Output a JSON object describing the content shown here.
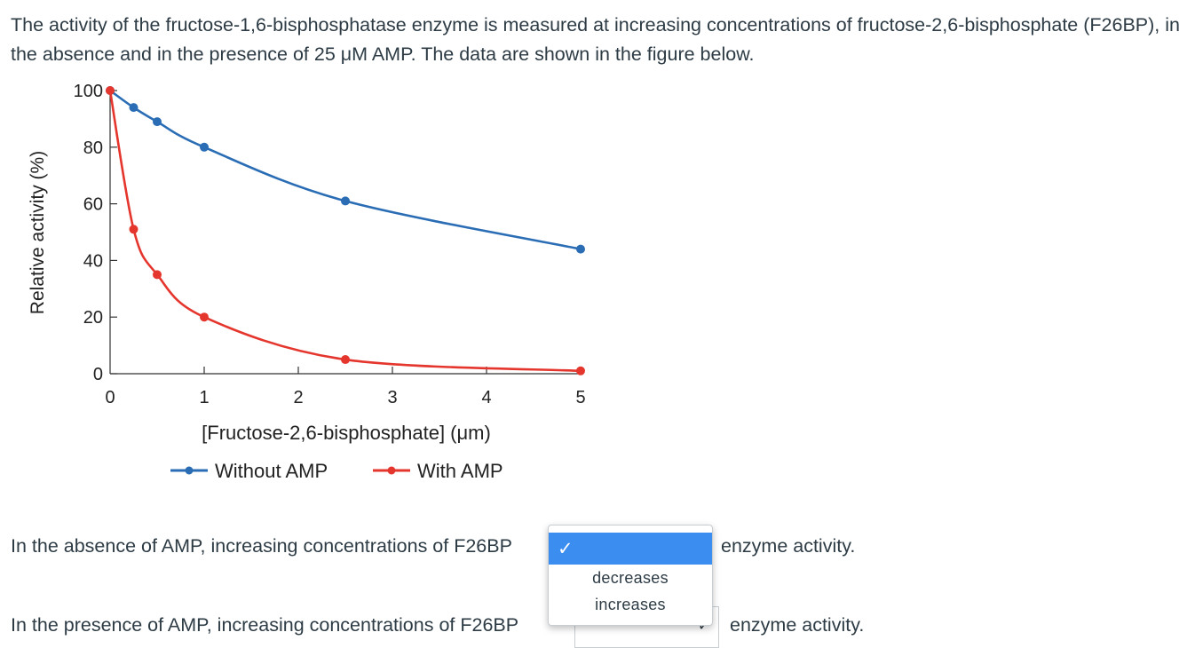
{
  "intro": "The activity of the fructose-1,6-bisphosphatase enzyme is measured at increasing concentrations of fructose-2,6-bisphosphate (F26BP), in the absence and in the presence of 25 μM AMP. The data are shown in the figure below.",
  "colors": {
    "series_without_amp": "#2a6db5",
    "series_with_amp": "#e5362e",
    "dropdown_highlight": "#3b8df0",
    "text": "#2d3b45"
  },
  "chart_data": {
    "type": "line",
    "xlabel": "[Fructose-2,6-bisphosphate] (μm)",
    "ylabel": "Relative activity (%)",
    "xlim": [
      0,
      5
    ],
    "ylim": [
      0,
      100
    ],
    "x_ticks": [
      "0",
      "1",
      "2",
      "3",
      "4",
      "5"
    ],
    "y_ticks": [
      "0",
      "20",
      "40",
      "60",
      "80",
      "100"
    ],
    "grid": false,
    "legend_position": "bottom",
    "series": [
      {
        "name": "Without AMP",
        "color": "#2a6db5",
        "x": [
          0,
          0.25,
          0.5,
          1,
          2.5,
          5
        ],
        "y": [
          100,
          94,
          89,
          80,
          61,
          44
        ]
      },
      {
        "name": "With AMP",
        "color": "#e5362e",
        "x": [
          0,
          0.25,
          0.5,
          1,
          2.5,
          5
        ],
        "y": [
          100,
          51,
          35,
          20,
          5,
          1
        ]
      }
    ]
  },
  "question1": {
    "prefix": "In the absence of AMP, increasing concentrations of F26BP",
    "suffix": "enzyme activity."
  },
  "question2": {
    "prefix": "In the presence of AMP, increasing concentrations of F26BP",
    "suffix": "enzyme activity."
  },
  "dropdown": {
    "options": [
      "decreases",
      "increases"
    ],
    "check_glyph": "✓",
    "caret_glyph": "✓"
  }
}
